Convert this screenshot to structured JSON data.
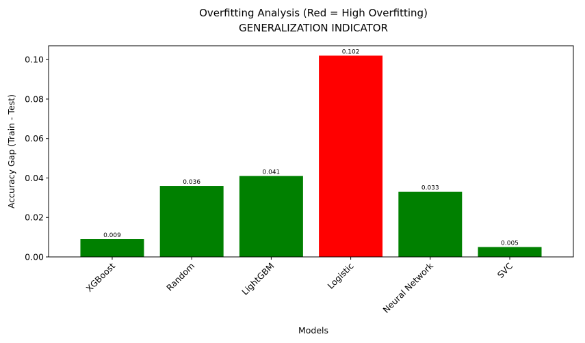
{
  "chart_data": {
    "type": "bar",
    "title": "Overfitting Analysis (Red = High Overfitting)",
    "subtitle": "GENERALIZATION INDICATOR",
    "xlabel": "Models",
    "ylabel": "Accuracy Gap (Train - Test)",
    "categories": [
      "XGBoost",
      "Random",
      "LightGBM",
      "Logistic",
      "Neural Network",
      "SVC"
    ],
    "values": [
      0.009,
      0.036,
      0.041,
      0.102,
      0.033,
      0.005
    ],
    "data_labels": [
      "0.009",
      "0.036",
      "0.041",
      "0.102",
      "0.033",
      "0.005"
    ],
    "bar_colors": [
      "#008000",
      "#008000",
      "#008000",
      "#ff0000",
      "#008000",
      "#008000"
    ],
    "ylim": [
      0,
      0.107
    ],
    "yticks": [
      0.0,
      0.02,
      0.04,
      0.06,
      0.08,
      0.1
    ],
    "ytick_labels": [
      "0.00",
      "0.02",
      "0.04",
      "0.06",
      "0.08",
      "0.10"
    ],
    "x_tick_rotation_deg": 45,
    "grid": false,
    "legend": "none"
  }
}
